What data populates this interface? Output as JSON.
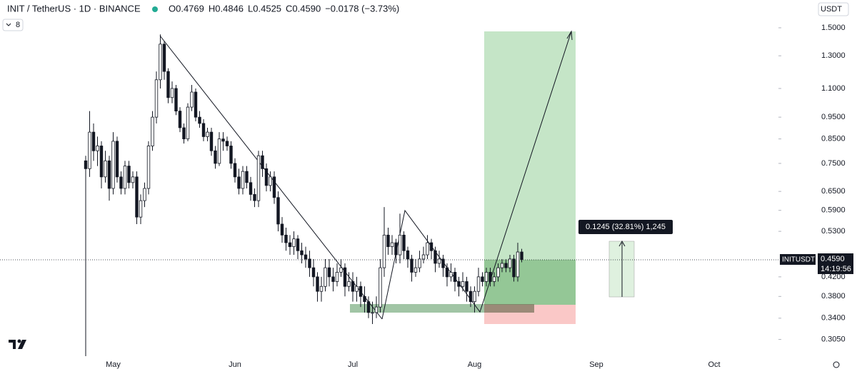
{
  "chart_data": {
    "type": "candlestick",
    "title": "INIT / TetherUS · 1D · BINANCE",
    "ohlc_legend": [
      "O0.4769",
      "H0.4846",
      "L0.4525",
      "C0.4590",
      "−0.0178 (−3.73%)"
    ],
    "indicator_count": "8",
    "currency": "USDT",
    "symbol_tag": "INITUSDT",
    "last_price_label": "0.4590",
    "countdown": "14:19:56",
    "measure_label": "0.1245 (32.81%) 1,245",
    "log_scale": true,
    "grid": false,
    "colors": {
      "up": "#ffffff",
      "down": "#131722",
      "wick": "#131722"
    },
    "ylim": [
      0.279,
      1.729
    ],
    "yticks": [
      {
        "value": 1.5,
        "label": "1.5000"
      },
      {
        "value": 1.3,
        "label": "1.3000"
      },
      {
        "value": 1.1,
        "label": "1.1000"
      },
      {
        "value": 0.95,
        "label": "0.9500"
      },
      {
        "value": 0.85,
        "label": "0.8500"
      },
      {
        "value": 0.75,
        "label": "0.7500"
      },
      {
        "value": 0.65,
        "label": "0.6500"
      },
      {
        "value": 0.59,
        "label": "0.5900"
      },
      {
        "value": 0.53,
        "label": "0.5300"
      },
      {
        "value": 0.42,
        "label": "0.4200"
      },
      {
        "value": 0.38,
        "label": "0.3800"
      },
      {
        "value": 0.34,
        "label": "0.3400"
      },
      {
        "value": 0.305,
        "label": "0.3050"
      }
    ],
    "categories": [
      null,
      null,
      null,
      null,
      null,
      null,
      null,
      "May",
      null,
      null,
      null,
      null,
      null,
      null,
      null,
      null,
      null,
      null,
      null,
      null,
      null,
      null,
      null,
      null,
      null,
      null,
      null,
      null,
      null,
      null,
      null,
      null,
      null,
      null,
      null,
      null,
      null,
      null,
      "Jun",
      null,
      null,
      null,
      null,
      null,
      null,
      null,
      null,
      null,
      null,
      null,
      null,
      null,
      null,
      null,
      null,
      null,
      null,
      null,
      null,
      null,
      null,
      null,
      null,
      null,
      null,
      null,
      null,
      null,
      "Jul",
      null,
      null,
      null,
      null,
      null,
      null,
      null,
      null,
      null,
      null,
      null,
      null,
      null,
      null,
      null,
      null,
      null,
      null,
      null,
      null,
      null,
      null,
      null,
      null,
      null,
      null,
      null,
      null,
      null,
      null,
      "Aug",
      null,
      null,
      null,
      null,
      null,
      null,
      null,
      null,
      null,
      null,
      null,
      null,
      null,
      null,
      null,
      null,
      null,
      null,
      null,
      null,
      null,
      null,
      null,
      null,
      null,
      null,
      null,
      null,
      null,
      null,
      "Sep",
      null,
      null,
      null,
      null,
      null,
      null,
      null,
      null,
      null,
      null,
      null,
      null,
      null,
      null,
      null,
      null,
      null,
      null,
      null,
      null,
      null,
      null,
      null,
      null,
      null,
      null,
      null,
      null,
      null,
      "Oct"
    ],
    "open": [
      0.76,
      0.73,
      0.88,
      0.8,
      0.82,
      0.7,
      0.76,
      0.66,
      0.84,
      0.7,
      0.66,
      0.74,
      0.68,
      0.7,
      0.57,
      0.62,
      0.66,
      0.82,
      0.95,
      1.15,
      1.38,
      1.2,
      1.05,
      1.1,
      0.98,
      0.9,
      0.85,
      1.0,
      1.08,
      0.95,
      0.92,
      0.86,
      0.88,
      0.8,
      0.75,
      0.85,
      0.84,
      0.82,
      0.75,
      0.7,
      0.66,
      0.72,
      0.68,
      0.64,
      0.62,
      0.78,
      0.73,
      0.67,
      0.7,
      0.63,
      0.55,
      0.52,
      0.5,
      0.49,
      0.51,
      0.48,
      0.47,
      0.46,
      0.44,
      0.42,
      0.39,
      0.4,
      0.44,
      0.42,
      0.41,
      0.43,
      0.44,
      0.4,
      0.41,
      0.39,
      0.4,
      0.38,
      0.37,
      0.35,
      0.35,
      0.36,
      0.44,
      0.52,
      0.49,
      0.5,
      0.47,
      0.52,
      0.48,
      0.46,
      0.43,
      0.44,
      0.46,
      0.47,
      0.5,
      0.48,
      0.45,
      0.46,
      0.44,
      0.42,
      0.43,
      0.41,
      0.4,
      0.41,
      0.39,
      0.37,
      0.39,
      0.42,
      0.41,
      0.43,
      0.41,
      0.42,
      0.44,
      0.45,
      0.44,
      0.46,
      0.42,
      0.4769,
      null,
      null,
      null,
      null,
      null,
      null,
      null,
      null,
      null,
      null,
      null,
      null,
      null,
      null,
      null,
      null,
      null,
      null,
      null,
      null,
      null,
      null,
      null,
      null,
      null,
      null,
      null,
      null,
      null,
      null,
      null,
      null,
      null,
      null,
      null,
      null,
      null,
      null,
      null,
      null,
      null,
      null,
      null,
      null,
      null,
      null,
      null,
      null,
      null
    ],
    "high": [
      0.78,
      0.98,
      0.92,
      0.86,
      0.84,
      0.8,
      0.78,
      0.88,
      0.86,
      0.72,
      0.76,
      0.76,
      0.72,
      0.72,
      0.64,
      0.68,
      0.84,
      0.98,
      1.2,
      1.45,
      1.4,
      1.22,
      1.14,
      1.12,
      1.0,
      0.92,
      1.02,
      1.12,
      1.1,
      0.98,
      0.94,
      0.9,
      0.9,
      0.82,
      0.88,
      0.88,
      0.86,
      0.84,
      0.77,
      0.73,
      0.74,
      0.74,
      0.7,
      0.66,
      0.8,
      0.8,
      0.75,
      0.72,
      0.72,
      0.65,
      0.57,
      0.54,
      0.52,
      0.53,
      0.52,
      0.5,
      0.49,
      0.48,
      0.46,
      0.43,
      0.42,
      0.46,
      0.46,
      0.44,
      0.45,
      0.46,
      0.45,
      0.43,
      0.43,
      0.42,
      0.41,
      0.4,
      0.38,
      0.37,
      0.38,
      0.46,
      0.6,
      0.54,
      0.52,
      0.51,
      0.58,
      0.53,
      0.49,
      0.47,
      0.46,
      0.48,
      0.49,
      0.52,
      0.51,
      0.49,
      0.48,
      0.47,
      0.45,
      0.45,
      0.44,
      0.42,
      0.43,
      0.42,
      0.4,
      0.4,
      0.44,
      0.43,
      0.44,
      0.44,
      0.43,
      0.45,
      0.46,
      0.46,
      0.47,
      0.47,
      0.5,
      0.4846,
      null,
      null,
      null,
      null,
      null,
      null,
      null,
      null,
      null,
      null,
      null,
      null,
      null,
      null,
      null,
      null,
      null,
      null,
      null,
      null,
      null,
      null,
      null,
      null,
      null,
      null,
      null,
      null,
      null,
      null,
      null,
      null,
      null,
      null,
      null,
      null,
      null,
      null,
      null,
      null,
      null,
      null,
      null,
      null,
      null,
      null,
      null,
      null,
      null
    ],
    "low": [
      0.28,
      0.7,
      0.76,
      0.74,
      0.66,
      0.68,
      0.62,
      0.64,
      0.68,
      0.64,
      0.64,
      0.66,
      0.66,
      0.55,
      0.55,
      0.6,
      0.64,
      0.8,
      0.92,
      1.1,
      1.15,
      1.02,
      1.02,
      0.96,
      0.88,
      0.83,
      0.84,
      0.98,
      0.93,
      0.9,
      0.84,
      0.84,
      0.78,
      0.73,
      0.74,
      0.8,
      0.8,
      0.73,
      0.68,
      0.64,
      0.64,
      0.66,
      0.62,
      0.6,
      0.6,
      0.7,
      0.65,
      0.65,
      0.61,
      0.53,
      0.5,
      0.48,
      0.47,
      0.47,
      0.46,
      0.45,
      0.44,
      0.42,
      0.4,
      0.37,
      0.37,
      0.39,
      0.4,
      0.39,
      0.4,
      0.42,
      0.38,
      0.39,
      0.37,
      0.37,
      0.36,
      0.35,
      0.34,
      0.33,
      0.34,
      0.35,
      0.42,
      0.47,
      0.47,
      0.45,
      0.45,
      0.46,
      0.44,
      0.41,
      0.42,
      0.43,
      0.45,
      0.46,
      0.46,
      0.43,
      0.44,
      0.42,
      0.4,
      0.41,
      0.39,
      0.38,
      0.39,
      0.37,
      0.36,
      0.35,
      0.38,
      0.4,
      0.4,
      0.4,
      0.4,
      0.41,
      0.43,
      0.43,
      0.43,
      0.41,
      0.41,
      0.4525,
      null,
      null,
      null,
      null,
      null,
      null,
      null,
      null,
      null,
      null,
      null,
      null,
      null,
      null,
      null,
      null,
      null,
      null,
      null,
      null,
      null,
      null,
      null,
      null,
      null,
      null,
      null,
      null,
      null,
      null,
      null,
      null,
      null,
      null,
      null,
      null,
      null,
      null,
      null,
      null,
      null,
      null,
      null,
      null,
      null,
      null,
      null,
      null,
      null
    ],
    "close": [
      0.73,
      0.88,
      0.8,
      0.82,
      0.7,
      0.76,
      0.66,
      0.84,
      0.7,
      0.66,
      0.74,
      0.68,
      0.7,
      0.57,
      0.62,
      0.66,
      0.82,
      0.95,
      1.15,
      1.38,
      1.2,
      1.05,
      1.1,
      0.98,
      0.9,
      0.85,
      1.0,
      1.08,
      0.95,
      0.92,
      0.86,
      0.88,
      0.8,
      0.75,
      0.85,
      0.84,
      0.82,
      0.75,
      0.7,
      0.66,
      0.72,
      0.68,
      0.64,
      0.62,
      0.78,
      0.73,
      0.67,
      0.7,
      0.63,
      0.55,
      0.52,
      0.5,
      0.49,
      0.51,
      0.48,
      0.47,
      0.46,
      0.44,
      0.42,
      0.39,
      0.4,
      0.44,
      0.42,
      0.41,
      0.43,
      0.44,
      0.4,
      0.41,
      0.39,
      0.4,
      0.38,
      0.37,
      0.35,
      0.35,
      0.36,
      0.44,
      0.52,
      0.49,
      0.5,
      0.47,
      0.52,
      0.48,
      0.46,
      0.43,
      0.44,
      0.46,
      0.47,
      0.5,
      0.48,
      0.45,
      0.46,
      0.44,
      0.42,
      0.43,
      0.41,
      0.4,
      0.41,
      0.39,
      0.37,
      0.39,
      0.42,
      0.41,
      0.43,
      0.41,
      0.42,
      0.44,
      0.45,
      0.44,
      0.46,
      0.42,
      0.4769,
      0.459,
      null,
      null,
      null,
      null,
      null,
      null,
      null,
      null,
      null,
      null,
      null,
      null,
      null,
      null,
      null,
      null,
      null,
      null,
      null,
      null,
      null,
      null,
      null,
      null,
      null,
      null,
      null,
      null,
      null,
      null,
      null,
      null,
      null,
      null,
      null,
      null,
      null,
      null,
      null,
      null,
      null,
      null,
      null,
      null,
      null,
      null,
      null,
      null,
      null
    ]
  }
}
